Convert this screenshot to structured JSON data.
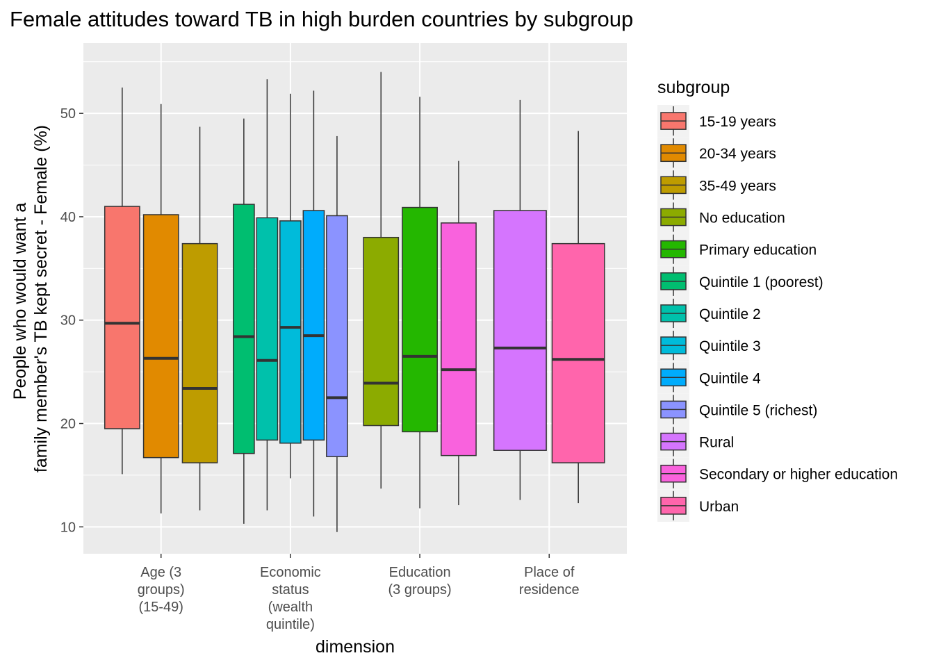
{
  "chart_data": {
    "type": "boxplot",
    "title": "Female attitudes toward TB in high burden countries by subgroup",
    "xlabel": "dimension",
    "ylabel_lines": [
      "People who would want a",
      "family member's TB kept secret - Female (%)"
    ],
    "ylim": [
      7.4,
      56.8
    ],
    "yticks": [
      10,
      20,
      30,
      40,
      50
    ],
    "grid": true,
    "legend": {
      "title": "subgroup",
      "position": "right",
      "items": [
        {
          "name": "15-19 years",
          "color": "#F8766D"
        },
        {
          "name": "20-34 years",
          "color": "#E18A00"
        },
        {
          "name": "35-49 years",
          "color": "#BE9C00"
        },
        {
          "name": "No education",
          "color": "#8CAB00"
        },
        {
          "name": "Primary education",
          "color": "#24B700"
        },
        {
          "name": "Quintile 1 (poorest)",
          "color": "#00BE70"
        },
        {
          "name": "Quintile 2",
          "color": "#00C1AB"
        },
        {
          "name": "Quintile 3",
          "color": "#00BBDA"
        },
        {
          "name": "Quintile 4",
          "color": "#00ACFC"
        },
        {
          "name": "Quintile 5 (richest)",
          "color": "#8B93FF"
        },
        {
          "name": "Rural",
          "color": "#D575FE"
        },
        {
          "name": "Secondary or higher education",
          "color": "#F962DD"
        },
        {
          "name": "Urban",
          "color": "#FF65AC"
        }
      ]
    },
    "categories": [
      {
        "label_lines": [
          "Age (3",
          "groups)",
          "(15-49)"
        ],
        "groups": [
          {
            "name": "15-19 years",
            "min": 15.1,
            "q1": 19.5,
            "median": 29.7,
            "q3": 41.0,
            "max": 52.5
          },
          {
            "name": "20-34 years",
            "min": 11.3,
            "q1": 16.7,
            "median": 26.3,
            "q3": 40.2,
            "max": 50.9
          },
          {
            "name": "35-49 years",
            "min": 11.6,
            "q1": 16.2,
            "median": 23.4,
            "q3": 37.4,
            "max": 48.7
          }
        ]
      },
      {
        "label_lines": [
          "Economic",
          "status",
          "(wealth",
          "quintile)"
        ],
        "groups": [
          {
            "name": "Quintile 1 (poorest)",
            "min": 10.3,
            "q1": 17.1,
            "median": 28.4,
            "q3": 41.2,
            "max": 49.5
          },
          {
            "name": "Quintile 2",
            "min": 11.6,
            "q1": 18.4,
            "median": 26.1,
            "q3": 39.9,
            "max": 53.3
          },
          {
            "name": "Quintile 3",
            "min": 14.7,
            "q1": 18.1,
            "median": 29.3,
            "q3": 39.6,
            "max": 51.9
          },
          {
            "name": "Quintile 4",
            "min": 11.0,
            "q1": 18.4,
            "median": 28.5,
            "q3": 40.6,
            "max": 52.2
          },
          {
            "name": "Quintile 5 (richest)",
            "min": 9.5,
            "q1": 16.8,
            "median": 22.5,
            "q3": 40.1,
            "max": 47.8
          }
        ]
      },
      {
        "label_lines": [
          "Education",
          "(3 groups)"
        ],
        "groups": [
          {
            "name": "No education",
            "min": 13.7,
            "q1": 19.8,
            "median": 23.9,
            "q3": 38.0,
            "max": 54.0
          },
          {
            "name": "Primary education",
            "min": 11.8,
            "q1": 19.2,
            "median": 26.5,
            "q3": 40.9,
            "max": 51.6
          },
          {
            "name": "Secondary or higher education",
            "min": 12.1,
            "q1": 16.9,
            "median": 25.2,
            "q3": 39.4,
            "max": 45.4
          }
        ]
      },
      {
        "label_lines": [
          "Place of",
          "residence"
        ],
        "groups": [
          {
            "name": "Rural",
            "min": 12.6,
            "q1": 17.4,
            "median": 27.3,
            "q3": 40.6,
            "max": 51.3
          },
          {
            "name": "Urban",
            "min": 12.3,
            "q1": 16.2,
            "median": 26.2,
            "q3": 37.4,
            "max": 48.3
          }
        ]
      }
    ]
  }
}
